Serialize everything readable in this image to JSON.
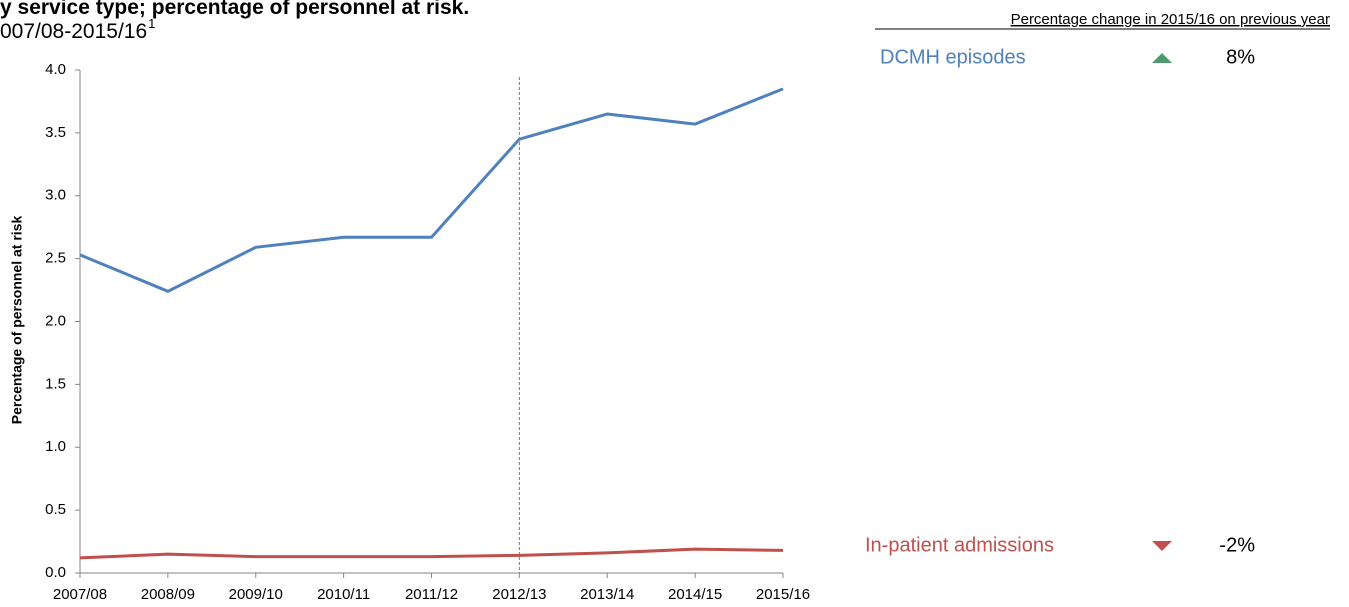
{
  "chart_data": {
    "type": "line",
    "title": "y service type; percentage of personnel at risk.",
    "subtitle": "007/08-2015/16",
    "subtitle_superscript": "1",
    "y_label": "Percentage of personnel at risk",
    "categories": [
      "2007/08",
      "2008/09",
      "2009/10",
      "2010/11",
      "2011/12",
      "2012/13",
      "2013/14",
      "2014/15",
      "2015/16"
    ],
    "series": [
      {
        "name": "DCMH episodes",
        "color": "#4f81bd",
        "values": [
          2.53,
          2.24,
          2.59,
          2.67,
          2.67,
          3.45,
          3.65,
          3.57,
          3.85
        ],
        "change": {
          "value": 8,
          "label": "8%"
        },
        "change_color": "#4e9a6a"
      },
      {
        "name": "In-patient admissions",
        "color": "#c0504d",
        "values": [
          0.12,
          0.15,
          0.13,
          0.13,
          0.13,
          0.14,
          0.16,
          0.19,
          0.18
        ],
        "change": {
          "value": -2,
          "label": "-2%"
        },
        "change_color": "#c0504d"
      }
    ],
    "change_header": "Percentage change in 2015/16 on  previous year",
    "reference_line_x": "2012/13",
    "ylim": [
      0,
      4
    ],
    "yticks": [
      {
        "value": 0,
        "label": "0.0"
      },
      0.5,
      {
        "value": 1,
        "label": "1.0"
      },
      1.5,
      {
        "value": 2,
        "label": "2.0"
      },
      2.5,
      {
        "value": 3,
        "label": "3.0"
      },
      3.5,
      {
        "value": 4,
        "label": "4.0"
      }
    ],
    "grid": false
  }
}
